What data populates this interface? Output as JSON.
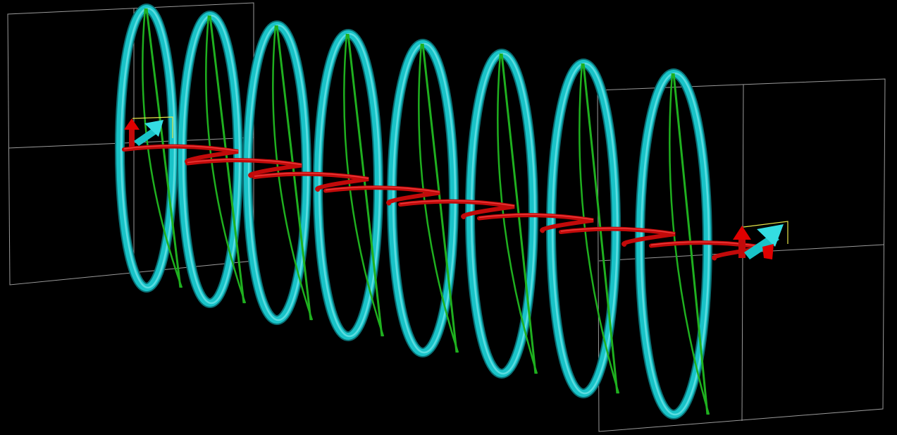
{
  "scene": {
    "description_free": true,
    "helix_count": 8,
    "colors": {
      "background": "#000000",
      "helix_tube": "#19c3c8",
      "helix_tube_highlight": "#8ff2f5",
      "helix_tube_shadow": "#0a6f74",
      "sine_wave": "#1fb01f",
      "red_wave": "#c20a0a",
      "red_wave_highlight": "#ff5050",
      "red_wave_shadow": "#5a0000",
      "frame_line": "#9a9a9a",
      "arrow_red": "#e00000",
      "arrow_cyan": "#19c3c8",
      "arrow_yellow": "#e6e64a"
    }
  }
}
